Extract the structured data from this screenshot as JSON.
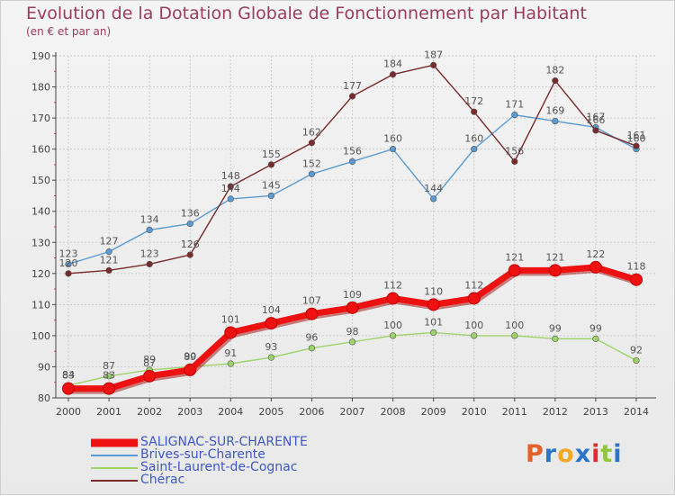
{
  "title": "Evolution de la Dotation Globale de Fonctionnement par Habitant",
  "subtitle": "(en € et par an)",
  "logo": {
    "text": "Proxiti",
    "letter_colors": [
      "#e4612b",
      "#2a74c9",
      "#f1a927",
      "#2a74c9",
      "#e02c2c",
      "#8ec63f",
      "#2a74c9"
    ]
  },
  "colors": {
    "grid": "#cccccc",
    "axis": "#444444",
    "title": "#9b3b5d",
    "legend_text": "#3e58c8"
  },
  "chart_data": {
    "type": "line",
    "x": [
      "2000",
      "2001",
      "2002",
      "2003",
      "2004",
      "2005",
      "2006",
      "2007",
      "2008",
      "2009",
      "2010",
      "2011",
      "2012",
      "2013",
      "2014"
    ],
    "ylim": [
      80,
      190
    ],
    "yticks": [
      80,
      90,
      100,
      110,
      120,
      130,
      140,
      150,
      160,
      170,
      180,
      190
    ],
    "grid": true,
    "legend_position": "bottom-left",
    "series": [
      {
        "name": "SALIGNAC-SUR-CHARENTE",
        "color": "#ee1111",
        "style": "thick",
        "values": [
          83,
          83,
          87,
          89,
          101,
          104,
          107,
          109,
          112,
          110,
          112,
          121,
          121,
          122,
          118
        ]
      },
      {
        "name": "Brives-sur-Charente",
        "color": "#5a9bd3",
        "style": "thin",
        "values": [
          123,
          127,
          134,
          136,
          144,
          145,
          152,
          156,
          160,
          144,
          160,
          171,
          169,
          167,
          160
        ]
      },
      {
        "name": "Saint-Laurent-de-Cognac",
        "color": "#9ed36a",
        "style": "thin",
        "values": [
          84,
          87,
          89,
          90,
          91,
          93,
          96,
          98,
          100,
          101,
          100,
          100,
          99,
          99,
          92
        ]
      },
      {
        "name": "Chérac",
        "color": "#7a2a2a",
        "style": "thin",
        "values": [
          120,
          121,
          123,
          126,
          148,
          155,
          162,
          177,
          184,
          187,
          172,
          156,
          182,
          166,
          161
        ]
      }
    ]
  }
}
